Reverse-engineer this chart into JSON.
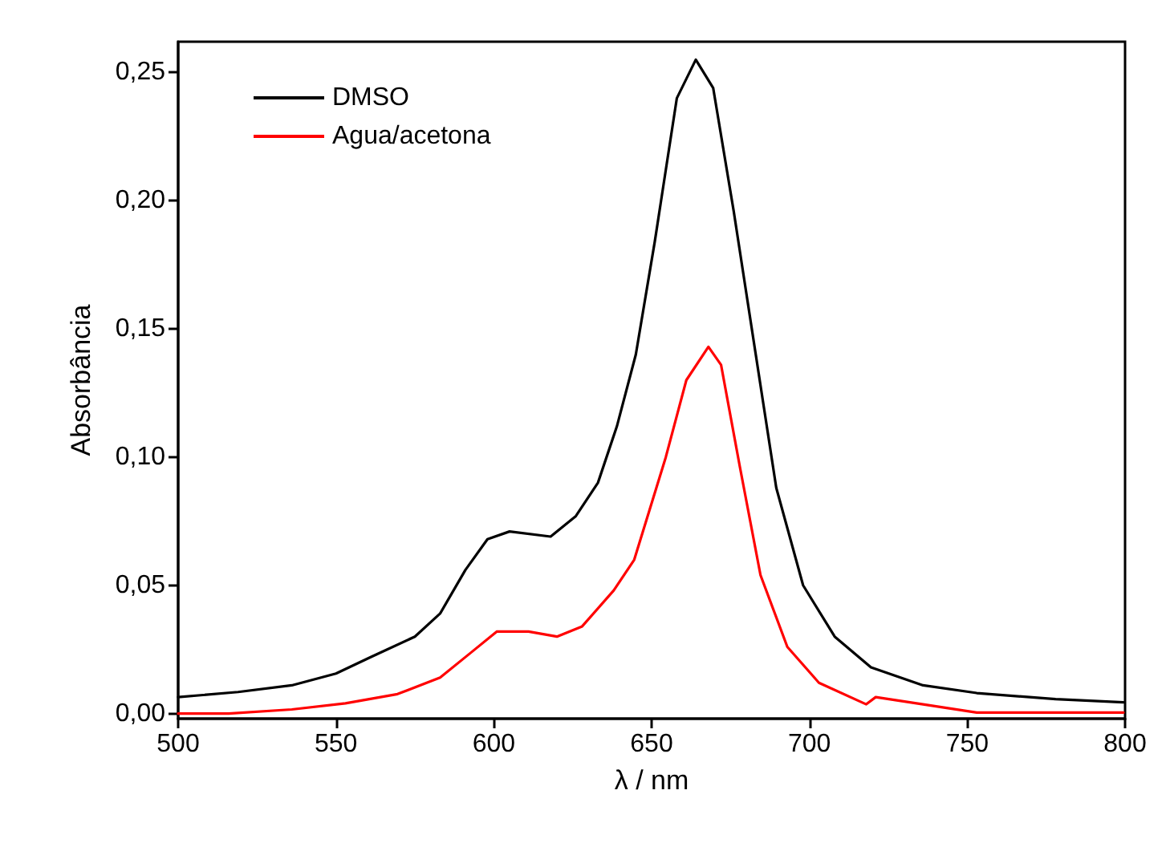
{
  "chart_data": {
    "type": "line",
    "xlabel": "λ / nm",
    "ylabel": "Absorbância",
    "xlim": [
      500,
      800
    ],
    "xticks": [
      500,
      550,
      600,
      650,
      700,
      750,
      800
    ],
    "ylim": [
      -0.002,
      0.262
    ],
    "yticks": [
      {
        "value": 0,
        "label": "0,00"
      },
      {
        "value": 0.05,
        "label": "0,05"
      },
      {
        "value": 0.1,
        "label": "0,10"
      },
      {
        "value": 0.15,
        "label": "0,15"
      },
      {
        "value": 0.2,
        "label": "0,20"
      },
      {
        "value": 0.25,
        "label": "0,25"
      }
    ],
    "grid": false,
    "legend": "top left",
    "marker": "none",
    "line_style": "solid",
    "series": [
      {
        "name": "DMSO",
        "color": "#000000",
        "x": [
          500,
          519,
          536,
          550,
          561,
          575,
          583,
          591,
          598,
          605,
          618,
          626,
          633,
          639,
          645,
          651,
          658,
          664,
          669.5,
          676,
          683,
          689.5,
          698,
          708,
          719.5,
          736,
          753,
          778,
          799.5
        ],
        "values": [
          0.0064,
          0.0084,
          0.011,
          0.0156,
          0.022,
          0.03,
          0.039,
          0.056,
          0.068,
          0.071,
          0.069,
          0.077,
          0.09,
          0.112,
          0.14,
          0.184,
          0.24,
          0.255,
          0.244,
          0.196,
          0.14,
          0.088,
          0.05,
          0.03,
          0.018,
          0.011,
          0.008,
          0.0056,
          0.0044
        ]
      },
      {
        "name": "Agua/acetona",
        "color": "#ff0000",
        "x": [
          500,
          516,
          536,
          553,
          569.5,
          583,
          593,
          601,
          611,
          620,
          628,
          638,
          644.5,
          654.5,
          661,
          668,
          672,
          678,
          684.5,
          693,
          703,
          718,
          721,
          736,
          753,
          799.5
        ],
        "values": [
          0,
          0,
          0.0016,
          0.004,
          0.0076,
          0.014,
          0.024,
          0.032,
          0.032,
          0.03,
          0.034,
          0.048,
          0.06,
          0.1,
          0.13,
          0.143,
          0.136,
          0.096,
          0.054,
          0.026,
          0.012,
          0.0036,
          0.0064,
          0.0036,
          0.0004,
          0.0004
        ]
      }
    ]
  }
}
